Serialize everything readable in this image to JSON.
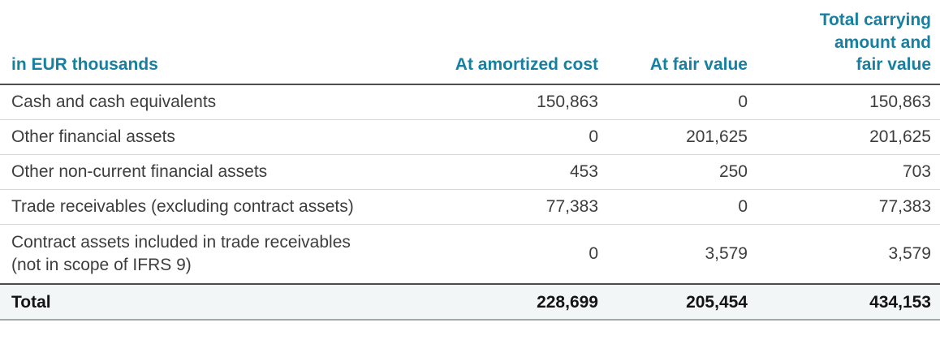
{
  "table": {
    "unit_label": "in EUR thousands",
    "column_headers": {
      "amortized": "At amortized cost",
      "fair": "At fair value",
      "total": "Total carrying\namount and\nfair value"
    },
    "rows": [
      {
        "label": "Cash and cash equivalents",
        "amortized": "150,863",
        "fair": "0",
        "total": "150,863"
      },
      {
        "label": "Other financial assets",
        "amortized": "0",
        "fair": "201,625",
        "total": "201,625"
      },
      {
        "label": "Other non-current financial assets",
        "amortized": "453",
        "fair": "250",
        "total": "703"
      },
      {
        "label": "Trade receivables (excluding contract assets)",
        "amortized": "77,383",
        "fair": "0",
        "total": "77,383"
      },
      {
        "label": "Contract assets included in trade receivables\n(not in scope of IFRS 9)",
        "amortized": "0",
        "fair": "3,579",
        "total": "3,579"
      }
    ],
    "total_row": {
      "label": "Total",
      "amortized": "228,699",
      "fair": "205,454",
      "total": "434,153"
    },
    "colors": {
      "header_teal": "#1780a0",
      "body_text": "#3d3d3d",
      "total_text": "#141414",
      "row_separator": "#d6d6d6",
      "heavy_rule": "#4d4d4d",
      "total_bottom_rule": "#a3a8ab",
      "total_row_background": "#f3f6f7"
    }
  }
}
